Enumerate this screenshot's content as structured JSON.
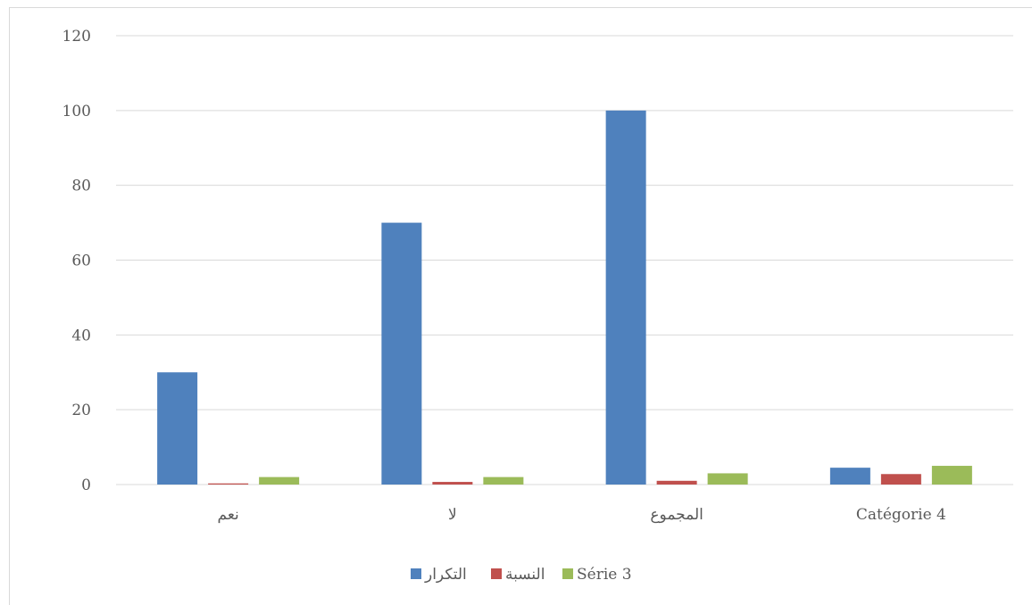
{
  "chart_data": {
    "type": "bar",
    "categories": [
      "نعم",
      "لا",
      "المجموع",
      "Catégorie 4"
    ],
    "series": [
      {
        "name": "التكرار",
        "color": "#4f81bd",
        "values": [
          30,
          70,
          100,
          4.5
        ]
      },
      {
        "name": "النسبة",
        "color": "#c0504d",
        "values": [
          0.3,
          0.7,
          1,
          2.8
        ]
      },
      {
        "name": "Série 3",
        "color": "#9bbb59",
        "values": [
          2,
          2,
          3,
          5
        ]
      }
    ],
    "title": "",
    "xlabel": "",
    "ylabel": "",
    "ylim": [
      0,
      120
    ],
    "yticks": [
      0,
      20,
      40,
      60,
      80,
      100,
      120
    ],
    "grid": true,
    "legend": "bottom-center"
  }
}
